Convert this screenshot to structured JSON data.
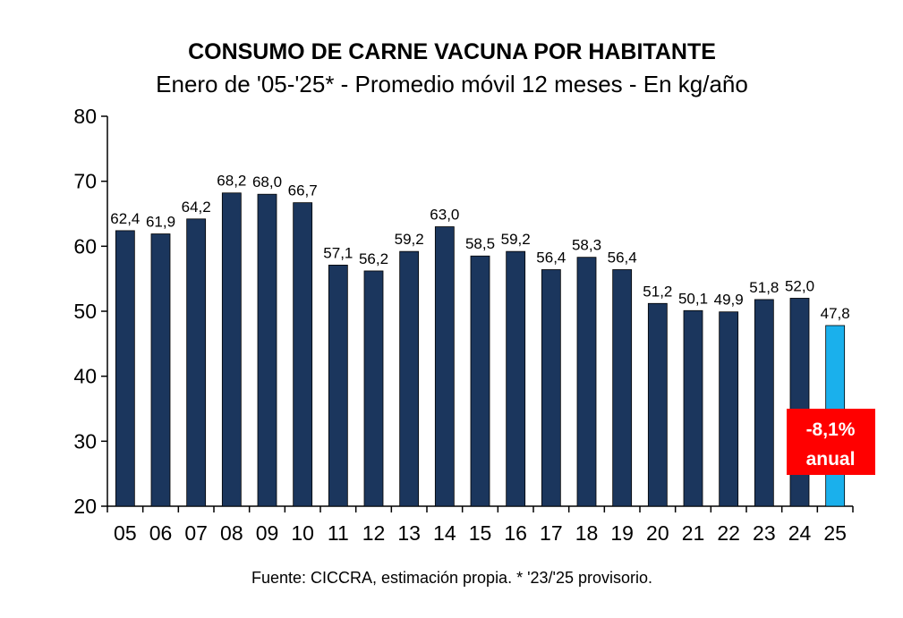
{
  "chart_data": {
    "type": "bar",
    "title": "CONSUMO DE CARNE VACUNA POR HABITANTE",
    "subtitle": "Enero de '05-'25* - Promedio móvil 12 meses -  En kg/año",
    "categories": [
      "05",
      "06",
      "07",
      "08",
      "09",
      "10",
      "11",
      "12",
      "13",
      "14",
      "15",
      "16",
      "17",
      "18",
      "19",
      "20",
      "21",
      "22",
      "23",
      "24",
      "25"
    ],
    "values": [
      62.4,
      61.9,
      64.2,
      68.2,
      68.0,
      66.7,
      57.1,
      56.2,
      59.2,
      63.0,
      58.5,
      59.2,
      56.4,
      58.3,
      56.4,
      51.2,
      50.1,
      49.9,
      51.8,
      52.0,
      47.8
    ],
    "data_labels": [
      "62,4",
      "61,9",
      "64,2",
      "68,2",
      "68,0",
      "66,7",
      "57,1",
      "56,2",
      "59,2",
      "63,0",
      "58,5",
      "59,2",
      "56,4",
      "58,3",
      "56,4",
      "51,2",
      "50,1",
      "49,9",
      "51,8",
      "52,0",
      "47,8"
    ],
    "ylim": [
      20,
      80
    ],
    "yticks": [
      20,
      30,
      40,
      50,
      60,
      70,
      80
    ],
    "grid": false,
    "colors": {
      "bar": "#1b365d",
      "highlight": "#1ab0ec",
      "annotation_bg": "#ff0000"
    },
    "annotation": {
      "line1": "-8,1%",
      "line2": "anual"
    },
    "source": "Fuente: CICCRA, estimación propia. * '23/'25 provisorio."
  }
}
